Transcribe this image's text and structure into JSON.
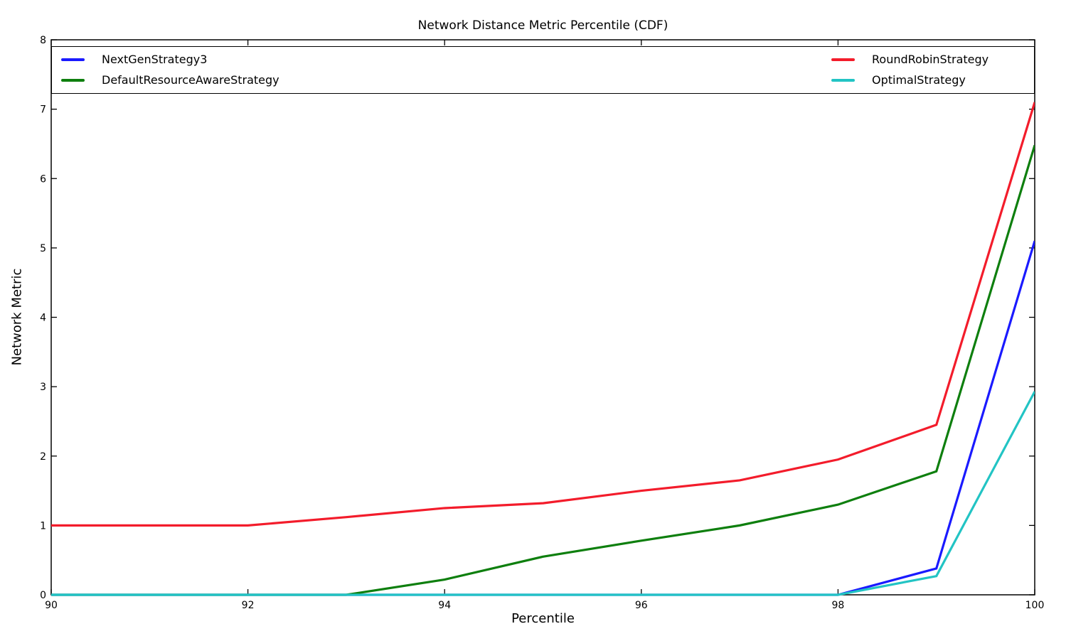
{
  "chart_data": {
    "type": "line",
    "title": "Network Distance Metric Percentile (CDF)",
    "xlabel": "Percentile",
    "ylabel": "Network Metric",
    "xlim": [
      90,
      100
    ],
    "ylim": [
      0,
      8
    ],
    "xticks": [
      90,
      92,
      94,
      96,
      98,
      100
    ],
    "yticks": [
      0,
      1,
      2,
      3,
      4,
      5,
      6,
      7,
      8
    ],
    "grid": false,
    "legend_position": "top-inside-expanded-2col",
    "x": [
      90,
      91,
      92,
      93,
      94,
      95,
      96,
      97,
      98,
      99,
      100
    ],
    "series": [
      {
        "name": "NextGenStrategy3",
        "color": "#1a1aff",
        "values": [
          0,
          0,
          0,
          0,
          0,
          0,
          0,
          0,
          0,
          0.38,
          5.1
        ]
      },
      {
        "name": "DefaultResourceAwareStrategy",
        "color": "#0e7f0e",
        "values": [
          0,
          0,
          0,
          0,
          0.22,
          0.55,
          0.78,
          1.0,
          1.3,
          1.78,
          6.48
        ]
      },
      {
        "name": "RoundRobinStrategy",
        "color": "#f31c2b",
        "values": [
          1.0,
          1.0,
          1.0,
          1.12,
          1.25,
          1.32,
          1.5,
          1.65,
          1.95,
          2.45,
          7.1
        ]
      },
      {
        "name": "OptimalStrategy",
        "color": "#22c4c4",
        "values": [
          0,
          0,
          0,
          0,
          0,
          0,
          0,
          0,
          0,
          0.27,
          2.93
        ]
      }
    ],
    "legend_columns": [
      [
        0,
        1
      ],
      [
        2,
        3
      ]
    ],
    "colors": {
      "spine": "#000000",
      "background": "#ffffff"
    }
  }
}
